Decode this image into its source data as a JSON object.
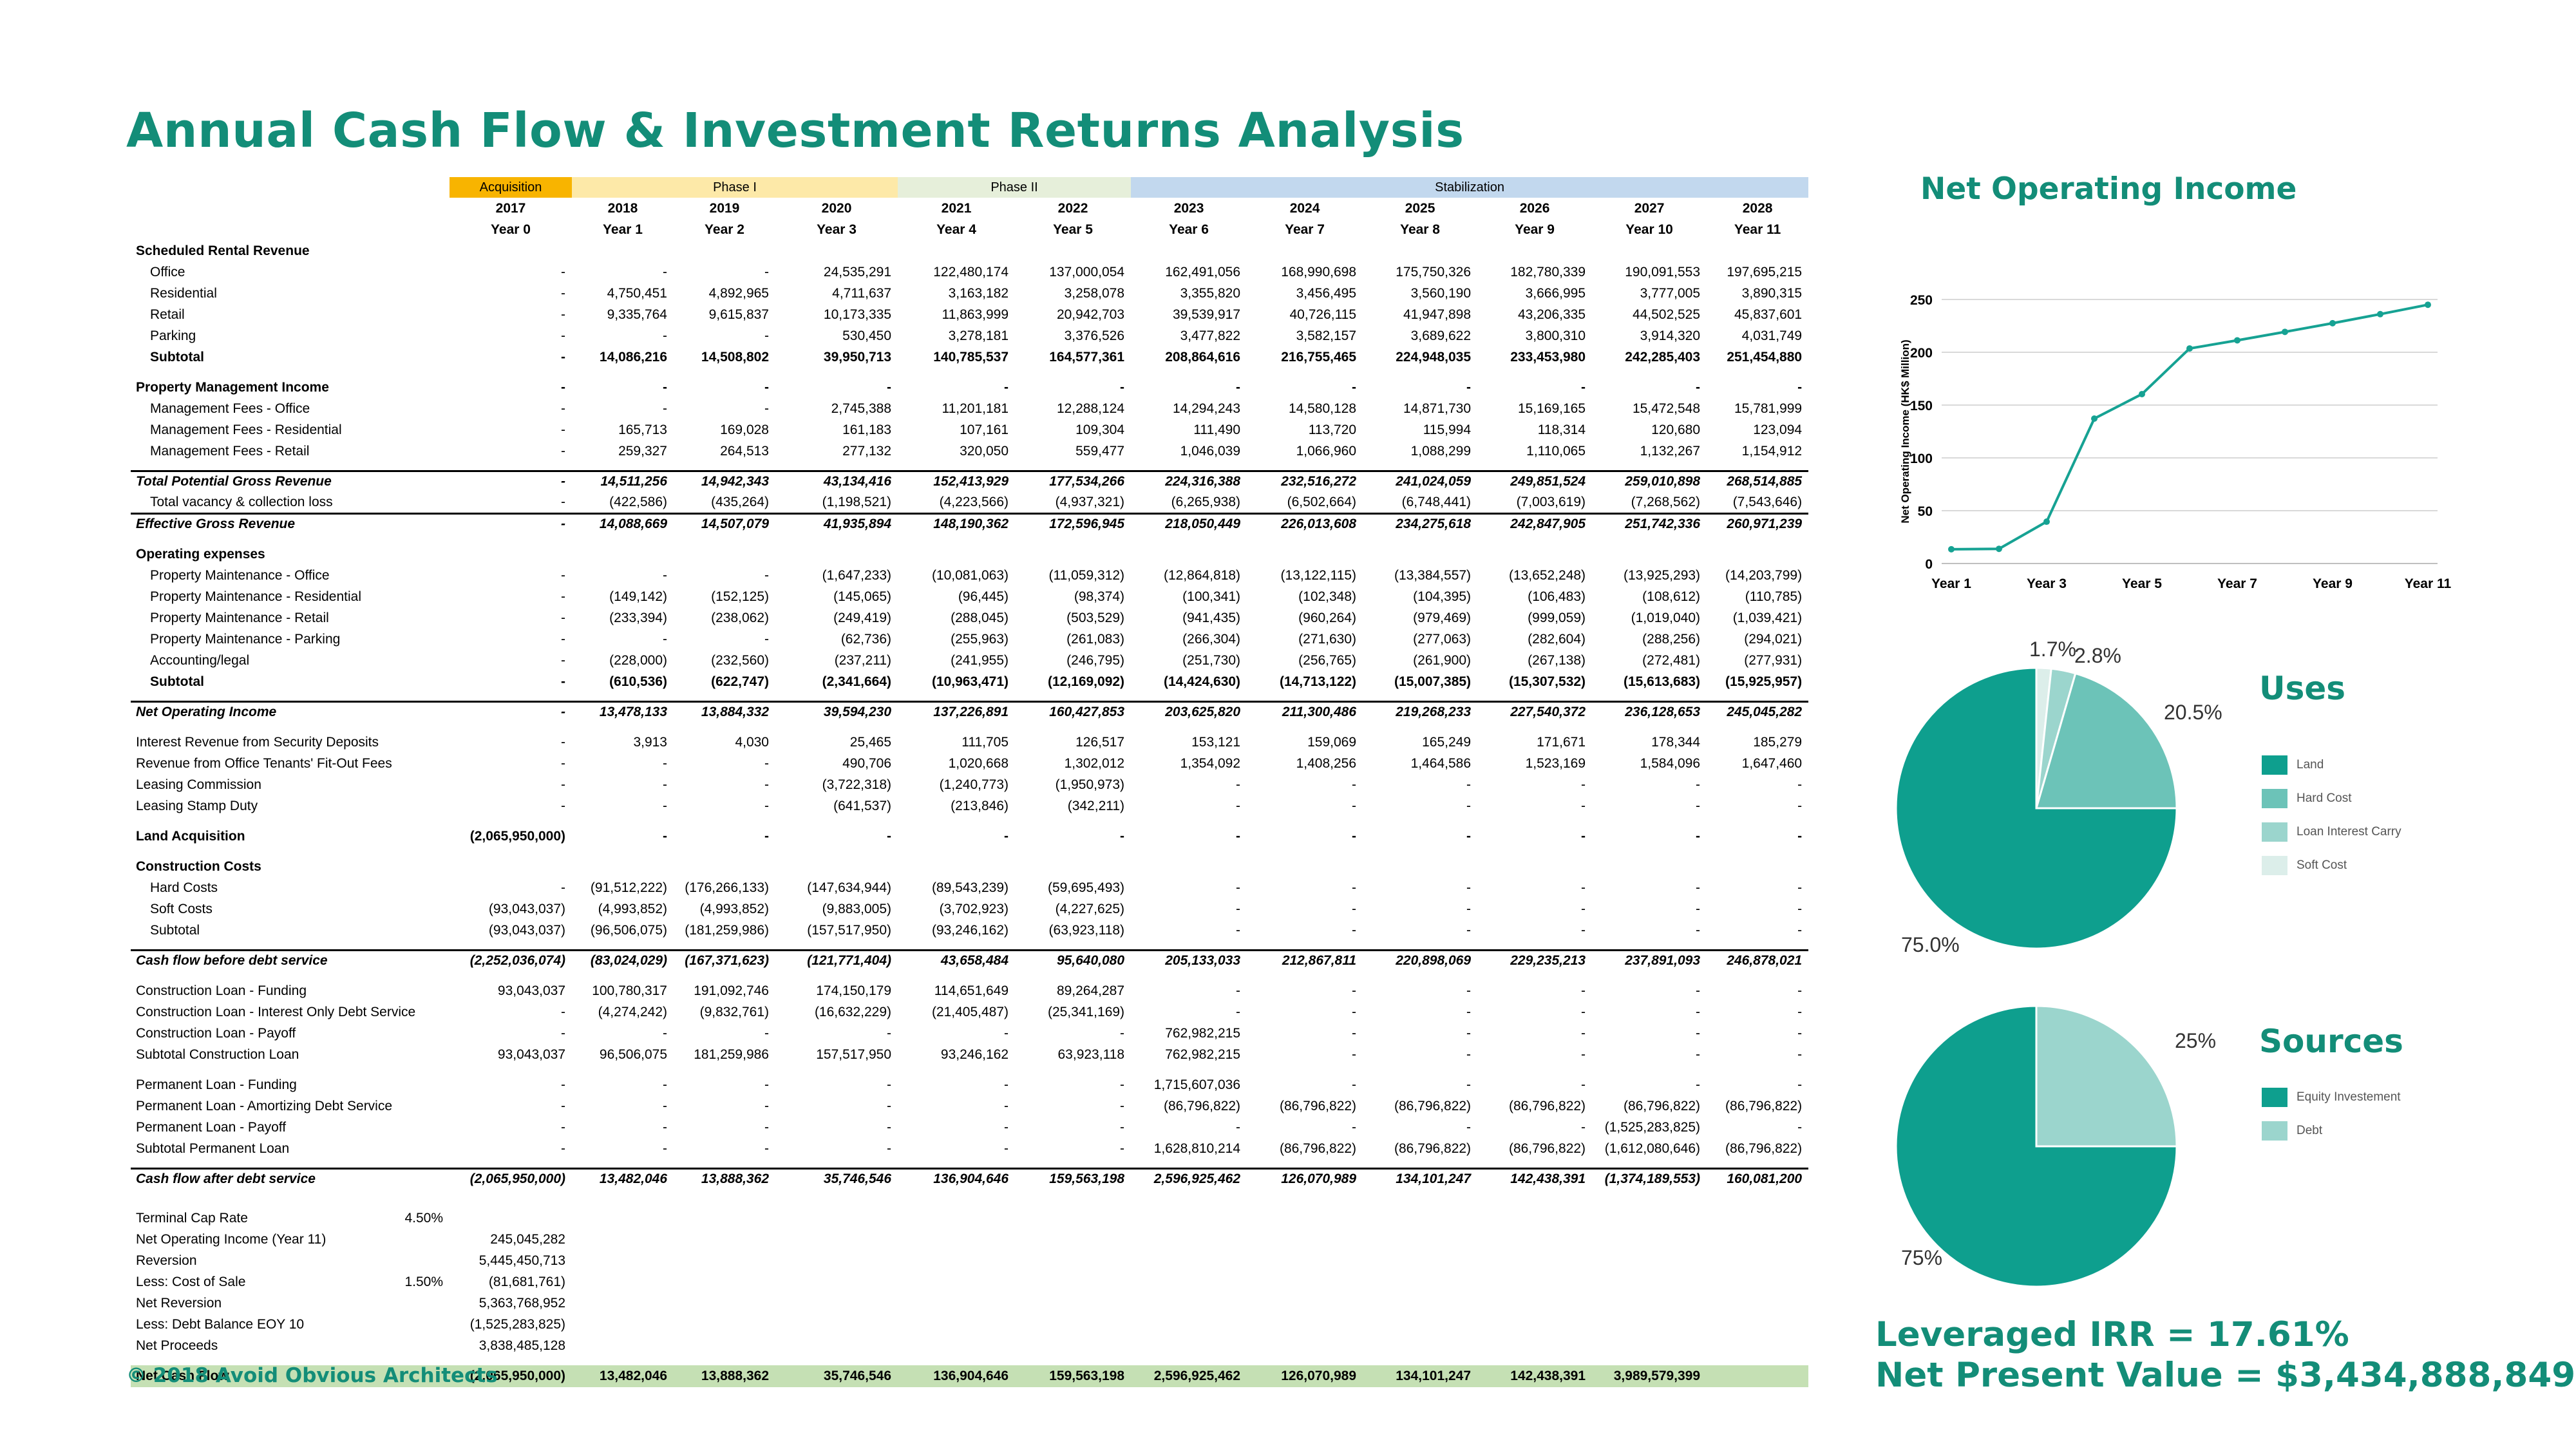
{
  "title": "Annual Cash Flow & Investment Returns Analysis",
  "copyright": "© 2018 Avoid Obvious Architects",
  "colors": {
    "accent": "#138d78",
    "pie_dark": "#0e9f8e",
    "pie_mid": "#6cc3b8",
    "pie_light": "#9bd5cd",
    "pie_pale": "#dceeea",
    "acquisition": "#f8b400",
    "phase1": "#fde9a8",
    "phase2": "#e6efda",
    "stabilization": "#c2d8ee",
    "net_cash_flow": "#c5e0b4"
  },
  "phases": {
    "acquisition": "Acquisition",
    "phase1": "Phase I",
    "phase2": "Phase II",
    "stabilization": "Stabilization"
  },
  "calendar_years": [
    "2017",
    "2018",
    "2019",
    "2020",
    "2021",
    "2022",
    "2023",
    "2024",
    "2025",
    "2026",
    "2027",
    "2028"
  ],
  "period_labels": [
    "Year 0",
    "Year 1",
    "Year 2",
    "Year 3",
    "Year 4",
    "Year 5",
    "Year 6",
    "Year 7",
    "Year 8",
    "Year 9",
    "Year 10",
    "Year 11"
  ],
  "table": {
    "rows": [
      {
        "label": "Scheduled Rental Revenue",
        "style": "bold",
        "values": []
      },
      {
        "label": "Office",
        "indent": true,
        "values": [
          "-",
          "-",
          "-",
          "24,535,291",
          "122,480,174",
          "137,000,054",
          "162,491,056",
          "168,990,698",
          "175,750,326",
          "182,780,339",
          "190,091,553",
          "197,695,215"
        ]
      },
      {
        "label": "Residential",
        "indent": true,
        "values": [
          "-",
          "4,750,451",
          "4,892,965",
          "4,711,637",
          "3,163,182",
          "3,258,078",
          "3,355,820",
          "3,456,495",
          "3,560,190",
          "3,666,995",
          "3,777,005",
          "3,890,315"
        ]
      },
      {
        "label": "Retail",
        "indent": true,
        "values": [
          "-",
          "9,335,764",
          "9,615,837",
          "10,173,335",
          "11,863,999",
          "20,942,703",
          "39,539,917",
          "40,726,115",
          "41,947,898",
          "43,206,335",
          "44,502,525",
          "45,837,601"
        ]
      },
      {
        "label": "Parking",
        "indent": true,
        "values": [
          "-",
          "-",
          "-",
          "530,450",
          "3,278,181",
          "3,376,526",
          "3,477,822",
          "3,582,157",
          "3,689,622",
          "3,800,310",
          "3,914,320",
          "4,031,749"
        ]
      },
      {
        "label": "Subtotal",
        "indent": true,
        "style": "bold",
        "values": [
          "-",
          "14,086,216",
          "14,508,802",
          "39,950,713",
          "140,785,537",
          "164,577,361",
          "208,864,616",
          "216,755,465",
          "224,948,035",
          "233,453,980",
          "242,285,403",
          "251,454,880"
        ]
      },
      {
        "gap": true
      },
      {
        "label": "Property Management Income",
        "style": "bold",
        "values": [
          "-",
          "-",
          "-",
          "-",
          "-",
          "-",
          "-",
          "-",
          "-",
          "-",
          "-",
          "-"
        ]
      },
      {
        "label": "Management Fees - Office",
        "indent": true,
        "values": [
          "-",
          "-",
          "-",
          "2,745,388",
          "11,201,181",
          "12,288,124",
          "14,294,243",
          "14,580,128",
          "14,871,730",
          "15,169,165",
          "15,472,548",
          "15,781,999"
        ]
      },
      {
        "label": "Management Fees - Residential",
        "indent": true,
        "values": [
          "-",
          "165,713",
          "169,028",
          "161,183",
          "107,161",
          "109,304",
          "111,490",
          "113,720",
          "115,994",
          "118,314",
          "120,680",
          "123,094"
        ]
      },
      {
        "label": "Management Fees - Retail",
        "indent": true,
        "values": [
          "-",
          "259,327",
          "264,513",
          "277,132",
          "320,050",
          "559,477",
          "1,046,039",
          "1,066,960",
          "1,088,299",
          "1,110,065",
          "1,132,267",
          "1,154,912"
        ]
      },
      {
        "gap": true
      },
      {
        "label": "Total Potential Gross Revenue",
        "style": "bi",
        "topline": true,
        "values": [
          "-",
          "14,511,256",
          "14,942,343",
          "43,134,416",
          "152,413,929",
          "177,534,266",
          "224,316,388",
          "232,516,272",
          "241,024,059",
          "249,851,524",
          "259,010,898",
          "268,514,885"
        ]
      },
      {
        "label": "Total vacancy & collection loss",
        "indent": true,
        "values": [
          "-",
          "(422,586)",
          "(435,264)",
          "(1,198,521)",
          "(4,223,566)",
          "(4,937,321)",
          "(6,265,938)",
          "(6,502,664)",
          "(6,748,441)",
          "(7,003,619)",
          "(7,268,562)",
          "(7,543,646)"
        ]
      },
      {
        "label": "Effective Gross Revenue",
        "style": "bi",
        "topline": true,
        "values": [
          "-",
          "14,088,669",
          "14,507,079",
          "41,935,894",
          "148,190,362",
          "172,596,945",
          "218,050,449",
          "226,013,608",
          "234,275,618",
          "242,847,905",
          "251,742,336",
          "260,971,239"
        ]
      },
      {
        "gap": true
      },
      {
        "label": "Operating expenses",
        "style": "bold",
        "values": []
      },
      {
        "label": "Property Maintenance - Office",
        "indent": true,
        "values": [
          "-",
          "-",
          "-",
          "(1,647,233)",
          "(10,081,063)",
          "(11,059,312)",
          "(12,864,818)",
          "(13,122,115)",
          "(13,384,557)",
          "(13,652,248)",
          "(13,925,293)",
          "(14,203,799)"
        ]
      },
      {
        "label": "Property Maintenance - Residential",
        "indent": true,
        "values": [
          "-",
          "(149,142)",
          "(152,125)",
          "(145,065)",
          "(96,445)",
          "(98,374)",
          "(100,341)",
          "(102,348)",
          "(104,395)",
          "(106,483)",
          "(108,612)",
          "(110,785)"
        ]
      },
      {
        "label": "Property Maintenance - Retail",
        "indent": true,
        "values": [
          "-",
          "(233,394)",
          "(238,062)",
          "(249,419)",
          "(288,045)",
          "(503,529)",
          "(941,435)",
          "(960,264)",
          "(979,469)",
          "(999,059)",
          "(1,019,040)",
          "(1,039,421)"
        ]
      },
      {
        "label": "Property Maintenance - Parking",
        "indent": true,
        "values": [
          "-",
          "-",
          "-",
          "(62,736)",
          "(255,963)",
          "(261,083)",
          "(266,304)",
          "(271,630)",
          "(277,063)",
          "(282,604)",
          "(288,256)",
          "(294,021)"
        ]
      },
      {
        "label": "Accounting/legal",
        "indent": true,
        "values": [
          "-",
          "(228,000)",
          "(232,560)",
          "(237,211)",
          "(241,955)",
          "(246,795)",
          "(251,730)",
          "(256,765)",
          "(261,900)",
          "(267,138)",
          "(272,481)",
          "(277,931)"
        ]
      },
      {
        "label": "Subtotal",
        "indent": true,
        "style": "bold",
        "values": [
          "-",
          "(610,536)",
          "(622,747)",
          "(2,341,664)",
          "(10,963,471)",
          "(12,169,092)",
          "(14,424,630)",
          "(14,713,122)",
          "(15,007,385)",
          "(15,307,532)",
          "(15,613,683)",
          "(15,925,957)"
        ]
      },
      {
        "gap": true
      },
      {
        "label": "Net Operating Income",
        "style": "bi",
        "topline": true,
        "values": [
          "-",
          "13,478,133",
          "13,884,332",
          "39,594,230",
          "137,226,891",
          "160,427,853",
          "203,625,820",
          "211,300,486",
          "219,268,233",
          "227,540,372",
          "236,128,653",
          "245,045,282"
        ]
      },
      {
        "gap": true
      },
      {
        "label": "Interest Revenue from Security Deposits",
        "values": [
          "-",
          "3,913",
          "4,030",
          "25,465",
          "111,705",
          "126,517",
          "153,121",
          "159,069",
          "165,249",
          "171,671",
          "178,344",
          "185,279"
        ]
      },
      {
        "label": "Revenue from Office Tenants' Fit-Out Fees",
        "values": [
          "-",
          "-",
          "-",
          "490,706",
          "1,020,668",
          "1,302,012",
          "1,354,092",
          "1,408,256",
          "1,464,586",
          "1,523,169",
          "1,584,096",
          "1,647,460"
        ]
      },
      {
        "label": "Leasing Commission",
        "values": [
          "-",
          "-",
          "-",
          "(3,722,318)",
          "(1,240,773)",
          "(1,950,973)",
          "-",
          "-",
          "-",
          "-",
          "-",
          "-"
        ]
      },
      {
        "label": "Leasing Stamp Duty",
        "values": [
          "-",
          "-",
          "-",
          "(641,537)",
          "(213,846)",
          "(342,211)",
          "-",
          "-",
          "-",
          "-",
          "-",
          "-"
        ]
      },
      {
        "gap": true
      },
      {
        "label": "Land Acquisition",
        "style": "bold",
        "values": [
          "(2,065,950,000)",
          "-",
          "-",
          "-",
          "-",
          "-",
          "-",
          "-",
          "-",
          "-",
          "-",
          "-"
        ]
      },
      {
        "gap": true
      },
      {
        "label": "Construction Costs",
        "style": "bold",
        "values": []
      },
      {
        "label": "Hard Costs",
        "indent": true,
        "values": [
          "-",
          "(91,512,222)",
          "(176,266,133)",
          "(147,634,944)",
          "(89,543,239)",
          "(59,695,493)",
          "-",
          "-",
          "-",
          "-",
          "-",
          "-"
        ]
      },
      {
        "label": "Soft Costs",
        "indent": true,
        "values": [
          "(93,043,037)",
          "(4,993,852)",
          "(4,993,852)",
          "(9,883,005)",
          "(3,702,923)",
          "(4,227,625)",
          "-",
          "-",
          "-",
          "-",
          "-",
          "-"
        ]
      },
      {
        "label": "Subtotal",
        "indent": true,
        "values": [
          "(93,043,037)",
          "(96,506,075)",
          "(181,259,986)",
          "(157,517,950)",
          "(93,246,162)",
          "(63,923,118)",
          "-",
          "-",
          "-",
          "-",
          "-",
          "-"
        ]
      },
      {
        "gap": true
      },
      {
        "label": "Cash flow before debt service",
        "style": "bi",
        "topline": true,
        "values": [
          "(2,252,036,074)",
          "(83,024,029)",
          "(167,371,623)",
          "(121,771,404)",
          "43,658,484",
          "95,640,080",
          "205,133,033",
          "212,867,811",
          "220,898,069",
          "229,235,213",
          "237,891,093",
          "246,878,021"
        ]
      },
      {
        "gap": true
      },
      {
        "label": "Construction Loan - Funding",
        "values": [
          "93,043,037",
          "100,780,317",
          "191,092,746",
          "174,150,179",
          "114,651,649",
          "89,264,287",
          "-",
          "-",
          "-",
          "-",
          "-",
          "-"
        ]
      },
      {
        "label": "Construction Loan - Interest Only Debt Service",
        "values": [
          "-",
          "(4,274,242)",
          "(9,832,761)",
          "(16,632,229)",
          "(21,405,487)",
          "(25,341,169)",
          "-",
          "-",
          "-",
          "-",
          "-",
          "-"
        ]
      },
      {
        "label": "Construction Loan - Payoff",
        "values": [
          "-",
          "-",
          "-",
          "-",
          "-",
          "-",
          "762,982,215",
          "-",
          "-",
          "-",
          "-",
          "-"
        ]
      },
      {
        "label": "Subtotal Construction Loan",
        "values": [
          "93,043,037",
          "96,506,075",
          "181,259,986",
          "157,517,950",
          "93,246,162",
          "63,923,118",
          "762,982,215",
          "-",
          "-",
          "-",
          "-",
          "-"
        ]
      },
      {
        "gap": true
      },
      {
        "label": "Permanent Loan - Funding",
        "values": [
          "-",
          "-",
          "-",
          "-",
          "-",
          "-",
          "1,715,607,036",
          "-",
          "-",
          "-",
          "-",
          "-"
        ]
      },
      {
        "label": "Permanent Loan - Amortizing Debt Service",
        "values": [
          "-",
          "-",
          "-",
          "-",
          "-",
          "-",
          "(86,796,822)",
          "(86,796,822)",
          "(86,796,822)",
          "(86,796,822)",
          "(86,796,822)",
          "(86,796,822)"
        ]
      },
      {
        "label": "Permanent Loan - Payoff",
        "values": [
          "-",
          "-",
          "-",
          "-",
          "-",
          "-",
          "-",
          "-",
          "-",
          "-",
          "(1,525,283,825)",
          "-"
        ]
      },
      {
        "label": "Subtotal Permanent Loan",
        "values": [
          "-",
          "-",
          "-",
          "-",
          "-",
          "-",
          "1,628,810,214",
          "(86,796,822)",
          "(86,796,822)",
          "(86,796,822)",
          "(1,612,080,646)",
          "(86,796,822)"
        ]
      },
      {
        "gap": true
      },
      {
        "label": "Cash flow after debt service",
        "style": "bi",
        "topline": true,
        "values": [
          "(2,065,950,000)",
          "13,482,046",
          "13,888,362",
          "35,746,546",
          "136,904,646",
          "159,563,198",
          "2,596,925,462",
          "126,070,989",
          "134,101,247",
          "142,438,391",
          "(1,374,189,553)",
          "160,081,200"
        ]
      },
      {
        "gap": true
      },
      {
        "gap": true
      },
      {
        "label": "Terminal Cap Rate",
        "aux": "4.50%",
        "values": []
      },
      {
        "label": "Net Operating Income (Year 11)",
        "values": [
          "245,045,282"
        ]
      },
      {
        "label": "Reversion",
        "values": [
          "5,445,450,713"
        ]
      },
      {
        "label": "Less: Cost of Sale",
        "aux": "1.50%",
        "values": [
          "(81,681,761)"
        ]
      },
      {
        "label": "Net Reversion",
        "values": [
          "5,363,768,952"
        ]
      },
      {
        "label": "Less: Debt Balance EOY 10",
        "values": [
          "(1,525,283,825)"
        ]
      },
      {
        "label": "Net Proceeds",
        "values": [
          "3,838,485,128"
        ]
      },
      {
        "gap": true
      },
      {
        "label": "Net Cash Flow",
        "style": "netcf",
        "values": [
          "(2,065,950,000)",
          "13,482,046",
          "13,888,362",
          "35,746,546",
          "136,904,646",
          "159,563,198",
          "2,596,925,462",
          "126,070,989",
          "134,101,247",
          "142,438,391",
          "3,989,579,399",
          ""
        ]
      }
    ]
  },
  "noi_chart": {
    "title": "Net Operating Income",
    "ylabel": "Net Operating Income (HK$ Million)",
    "ytick_labels": [
      "0",
      "50",
      "100",
      "150",
      "200",
      "250"
    ],
    "xtick_labels": [
      "Year 1",
      "Year 3",
      "Year 5",
      "Year 7",
      "Year 9",
      "Year 11"
    ]
  },
  "uses": {
    "title": "Uses",
    "labels": {
      "land": "75.0%",
      "hard": "20.5%",
      "interest": "2.8%",
      "soft": "1.7%"
    },
    "legend": [
      "Land",
      "Hard Cost",
      "Loan Interest Carry",
      "Soft Cost"
    ]
  },
  "sources": {
    "title": "Sources",
    "labels": {
      "equity": "75%",
      "debt": "25%"
    },
    "legend": [
      "Equity Investement",
      "Debt"
    ]
  },
  "returns": {
    "irr": "Leveraged IRR = 17.61%",
    "npv": "Net Present Value = $3,434,888,849"
  },
  "chart_data": [
    {
      "type": "line",
      "title": "Net Operating Income",
      "xlabel": "",
      "ylabel": "Net Operating Income (HK$ Million)",
      "x": [
        "Year 1",
        "Year 2",
        "Year 3",
        "Year 4",
        "Year 5",
        "Year 6",
        "Year 7",
        "Year 8",
        "Year 9",
        "Year 10",
        "Year 11"
      ],
      "series": [
        {
          "values": [
            13.5,
            13.9,
            39.6,
            137.2,
            160.4,
            203.6,
            211.3,
            219.3,
            227.5,
            236.1,
            245.0
          ]
        }
      ],
      "ylim": [
        0,
        250
      ],
      "grid": true
    },
    {
      "type": "pie",
      "title": "Uses",
      "categories": [
        "Land",
        "Hard Cost",
        "Loan Interest Carry",
        "Soft Cost"
      ],
      "values": [
        75.0,
        20.5,
        2.8,
        1.7
      ],
      "legend": "right"
    },
    {
      "type": "pie",
      "title": "Sources",
      "categories": [
        "Equity Investement",
        "Debt"
      ],
      "values": [
        75,
        25
      ],
      "legend": "right"
    }
  ]
}
